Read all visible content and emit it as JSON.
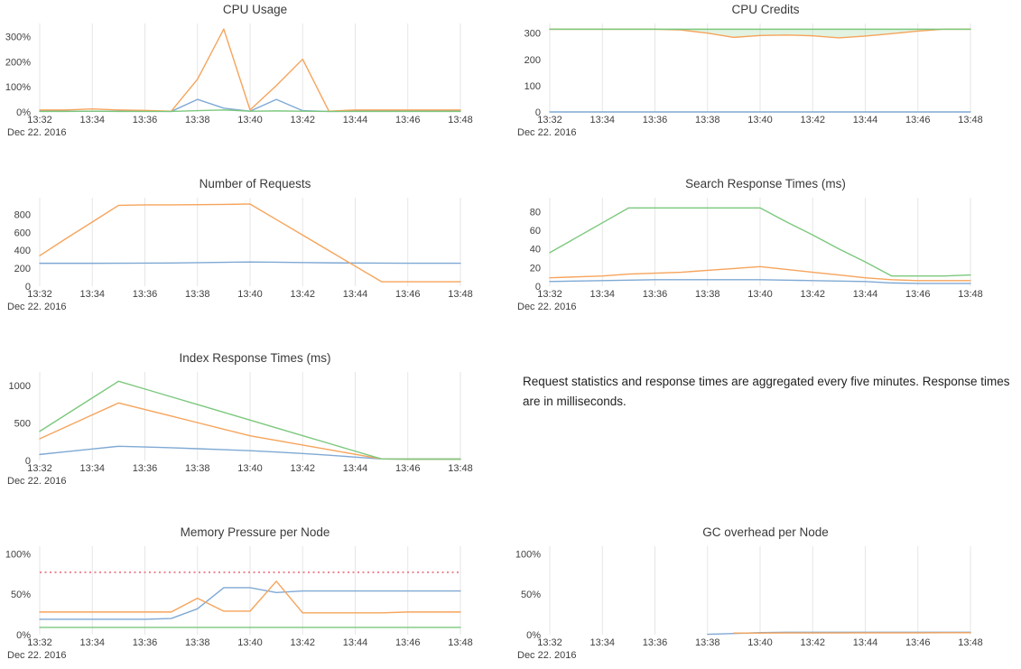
{
  "palette": {
    "blue": "#7fa9d4",
    "orange": "#f6a45b",
    "green": "#7cc87d",
    "red": "#ee8490",
    "grid": "#e6e6e6",
    "tick_text": "#3f3f3f",
    "title_text": "#3a3a3a",
    "green_fill": "rgba(124,200,125,0.22)"
  },
  "timeline": [
    "13:32",
    "13:33",
    "13:34",
    "13:35",
    "13:36",
    "13:37",
    "13:38",
    "13:39",
    "13:40",
    "13:41",
    "13:42",
    "13:43",
    "13:44",
    "13:45",
    "13:46",
    "13:47",
    "13:48"
  ],
  "note": {
    "text": "Request statistics and response times are aggregated every five minutes. Response times are in milliseconds."
  },
  "chart_data": [
    {
      "type": "line",
      "title": "CPU Usage",
      "date_label": "Dec 22. 2016",
      "xlabel": "",
      "ylabel": "",
      "ylim": [
        0,
        345
      ],
      "x_tick_step": 2,
      "grid": "vertical-only",
      "legend": "none",
      "yticks": [
        {
          "value": 0,
          "label": "0%"
        },
        {
          "value": 100,
          "label": "100%"
        },
        {
          "value": 200,
          "label": "200%"
        },
        {
          "value": 300,
          "label": "300%"
        }
      ],
      "series": [
        {
          "name": "blue",
          "color": "#7fa9d4",
          "style": "solid",
          "values": [
            3,
            3,
            3,
            3,
            3,
            2,
            50,
            15,
            3,
            50,
            5,
            2,
            3,
            3,
            3,
            3,
            3
          ]
        },
        {
          "name": "orange",
          "color": "#f6a45b",
          "style": "solid",
          "values": [
            8,
            8,
            12,
            8,
            6,
            3,
            130,
            330,
            8,
            105,
            210,
            3,
            8,
            8,
            8,
            8,
            8
          ]
        },
        {
          "name": "green",
          "color": "#7cc87d",
          "style": "solid",
          "values": [
            2,
            2,
            3,
            2,
            2,
            2,
            5,
            8,
            3,
            4,
            3,
            2,
            2,
            2,
            2,
            2,
            2
          ]
        }
      ]
    },
    {
      "type": "line",
      "title": "CPU Credits",
      "date_label": "Dec 22. 2016",
      "xlabel": "",
      "ylabel": "",
      "ylim": [
        0,
        330
      ],
      "x_tick_step": 2,
      "grid": "vertical-only",
      "legend": "none",
      "yticks": [
        {
          "value": 0,
          "label": "0"
        },
        {
          "value": 100,
          "label": "100"
        },
        {
          "value": 200,
          "label": "200"
        },
        {
          "value": 300,
          "label": "300"
        }
      ],
      "fill_between": {
        "upper": 2,
        "lower": 1,
        "color": "rgba(124,200,125,0.22)"
      },
      "series": [
        {
          "name": "blue",
          "color": "#7fa9d4",
          "style": "solid",
          "values": [
            0,
            0,
            0,
            0,
            0,
            0,
            0,
            0,
            0,
            0,
            0,
            0,
            0,
            0,
            0,
            0,
            0
          ]
        },
        {
          "name": "orange",
          "color": "#f6a45b",
          "style": "solid",
          "values": [
            315,
            315,
            315,
            315,
            315,
            312,
            300,
            284,
            291,
            293,
            290,
            282,
            289,
            298,
            308,
            315,
            315
          ]
        },
        {
          "name": "green",
          "color": "#7cc87d",
          "style": "solid",
          "values": [
            315,
            315,
            315,
            315,
            315,
            315,
            315,
            315,
            315,
            315,
            315,
            315,
            315,
            315,
            315,
            315,
            315
          ]
        }
      ]
    },
    {
      "type": "line",
      "title": "Number of Requests",
      "date_label": "Dec 22. 2016",
      "xlabel": "",
      "ylabel": "",
      "ylim": [
        0,
        965
      ],
      "x_tick_step": 2,
      "grid": "vertical-only",
      "legend": "none",
      "yticks": [
        {
          "value": 0,
          "label": "0"
        },
        {
          "value": 200,
          "label": "200"
        },
        {
          "value": 400,
          "label": "400"
        },
        {
          "value": 600,
          "label": "600"
        },
        {
          "value": 800,
          "label": "800"
        }
      ],
      "series": [
        {
          "name": "blue",
          "color": "#7fa9d4",
          "style": "solid",
          "values": [
            255,
            255,
            255,
            256,
            257,
            258,
            262,
            266,
            270,
            267,
            263,
            260,
            258,
            257,
            256,
            256,
            256
          ]
        },
        {
          "name": "orange",
          "color": "#f6a45b",
          "style": "solid",
          "values": [
            340,
            530,
            715,
            900,
            905,
            905,
            908,
            910,
            915,
            742,
            569,
            396,
            223,
            50,
            50,
            50,
            50
          ]
        }
      ]
    },
    {
      "type": "line",
      "title": "Search Response Times (ms)",
      "date_label": "Dec 22. 2016",
      "xlabel": "",
      "ylabel": "",
      "ylim": [
        0,
        93
      ],
      "x_tick_step": 2,
      "grid": "vertical-only",
      "legend": "none",
      "yticks": [
        {
          "value": 0,
          "label": "0"
        },
        {
          "value": 20,
          "label": "20"
        },
        {
          "value": 40,
          "label": "40"
        },
        {
          "value": 60,
          "label": "60"
        },
        {
          "value": 80,
          "label": "80"
        }
      ],
      "series": [
        {
          "name": "blue",
          "color": "#7fa9d4",
          "style": "solid",
          "values": [
            5,
            5.5,
            6,
            6.5,
            7,
            7,
            7,
            7,
            7,
            6.5,
            6,
            5.5,
            5,
            3.5,
            3,
            3,
            3
          ]
        },
        {
          "name": "orange",
          "color": "#f6a45b",
          "style": "solid",
          "values": [
            9,
            10,
            11,
            13,
            14,
            15,
            17,
            19,
            21,
            18,
            15,
            12,
            9,
            7,
            6,
            6,
            6
          ]
        },
        {
          "name": "green",
          "color": "#7cc87d",
          "style": "solid",
          "values": [
            36,
            52,
            68,
            84,
            84,
            84,
            84,
            84,
            84,
            69,
            55,
            40,
            26,
            11,
            11,
            11,
            12
          ]
        }
      ]
    },
    {
      "type": "line",
      "title": "Index Response Times (ms)",
      "date_label": "Dec 22. 2016",
      "xlabel": "",
      "ylabel": "",
      "ylim": [
        0,
        1160
      ],
      "x_tick_step": 2,
      "grid": "vertical-only",
      "legend": "none",
      "yticks": [
        {
          "value": 0,
          "label": "0"
        },
        {
          "value": 500,
          "label": "500"
        },
        {
          "value": 1000,
          "label": "1000"
        }
      ],
      "series": [
        {
          "name": "blue",
          "color": "#7fa9d4",
          "style": "solid",
          "values": [
            80,
            117,
            153,
            190,
            180,
            170,
            157,
            144,
            131,
            112,
            93,
            70,
            45,
            20,
            18,
            18,
            18
          ]
        },
        {
          "name": "orange",
          "color": "#f6a45b",
          "style": "solid",
          "values": [
            290,
            450,
            610,
            770,
            682,
            594,
            506,
            418,
            330,
            268,
            206,
            144,
            82,
            20,
            18,
            18,
            18
          ]
        },
        {
          "name": "green",
          "color": "#7cc87d",
          "style": "solid",
          "values": [
            390,
            613,
            837,
            1060,
            956,
            852,
            748,
            644,
            540,
            436,
            332,
            228,
            124,
            20,
            18,
            18,
            18
          ]
        }
      ]
    },
    {
      "type": "line",
      "title": "Memory Pressure per Node",
      "date_label": "Dec 22. 2016",
      "xlabel": "",
      "ylabel": "",
      "ylim": [
        0,
        107
      ],
      "x_tick_step": 2,
      "grid": "vertical-only",
      "legend": "none",
      "yticks": [
        {
          "value": 0,
          "label": "0%"
        },
        {
          "value": 50,
          "label": "50%"
        },
        {
          "value": 100,
          "label": "100%"
        }
      ],
      "series": [
        {
          "name": "green",
          "color": "#7cc87d",
          "style": "solid",
          "values": [
            9,
            9,
            9,
            9,
            9,
            9,
            9,
            9,
            9,
            9,
            9,
            9,
            9,
            9,
            9,
            9,
            9
          ]
        },
        {
          "name": "blue",
          "color": "#7fa9d4",
          "style": "solid",
          "values": [
            19,
            19,
            19,
            19,
            19,
            20,
            32,
            58,
            58,
            52,
            54,
            54,
            54,
            54,
            54,
            54,
            54
          ]
        },
        {
          "name": "orange",
          "color": "#f6a45b",
          "style": "solid",
          "values": [
            28,
            28,
            28,
            28,
            28,
            28,
            45,
            29,
            29,
            66,
            27,
            27,
            27,
            27,
            28,
            28,
            28
          ]
        },
        {
          "name": "red-dotted-threshold",
          "color": "#ee8490",
          "style": "dotted",
          "values": [
            77,
            77,
            77,
            77,
            77,
            77,
            77,
            77,
            77,
            77,
            77,
            77,
            77,
            77,
            77,
            77,
            77
          ]
        }
      ]
    },
    {
      "type": "line",
      "title": "GC overhead per Node",
      "date_label": "Dec 22. 2016",
      "xlabel": "",
      "ylabel": "",
      "ylim": [
        0,
        107
      ],
      "x_tick_step": 2,
      "grid": "vertical-only",
      "legend": "none",
      "yticks": [
        {
          "value": 0,
          "label": "0%"
        },
        {
          "value": 50,
          "label": "50%"
        },
        {
          "value": 100,
          "label": "100%"
        }
      ],
      "series": [
        {
          "name": "blue",
          "color": "#7fa9d4",
          "style": "solid",
          "values": [
            null,
            null,
            null,
            null,
            null,
            null,
            0.5,
            1.5,
            2.5,
            3,
            3,
            3,
            3,
            3,
            3,
            3,
            3
          ]
        },
        {
          "name": "orange",
          "color": "#f6a45b",
          "style": "solid",
          "values": [
            null,
            null,
            null,
            null,
            null,
            null,
            null,
            2,
            2,
            2.2,
            2.2,
            2.2,
            2.3,
            2.3,
            2.3,
            2.4,
            2.4
          ]
        }
      ]
    }
  ]
}
